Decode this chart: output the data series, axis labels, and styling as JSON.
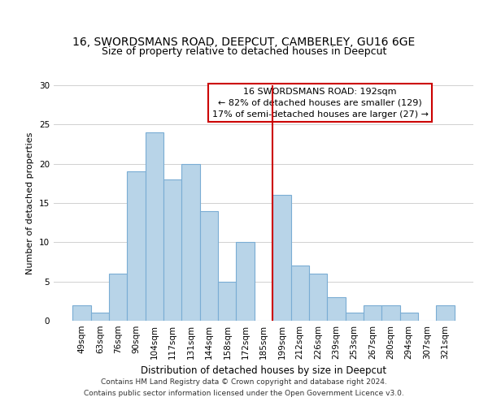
{
  "title": "16, SWORDSMANS ROAD, DEEPCUT, CAMBERLEY, GU16 6GE",
  "subtitle": "Size of property relative to detached houses in Deepcut",
  "xlabel": "Distribution of detached houses by size in Deepcut",
  "ylabel": "Number of detached properties",
  "categories": [
    "49sqm",
    "63sqm",
    "76sqm",
    "90sqm",
    "104sqm",
    "117sqm",
    "131sqm",
    "144sqm",
    "158sqm",
    "172sqm",
    "185sqm",
    "199sqm",
    "212sqm",
    "226sqm",
    "239sqm",
    "253sqm",
    "267sqm",
    "280sqm",
    "294sqm",
    "307sqm",
    "321sqm"
  ],
  "values": [
    2,
    1,
    6,
    19,
    24,
    18,
    20,
    14,
    5,
    10,
    0,
    16,
    7,
    6,
    3,
    1,
    2,
    2,
    1,
    0,
    2
  ],
  "bar_color": "#b8d4e8",
  "bar_edge_color": "#7aadd4",
  "background_color": "#ffffff",
  "grid_color": "#d0d0d0",
  "vline_x": 11,
  "vline_color": "#cc0000",
  "annotation_text": "16 SWORDSMANS ROAD: 192sqm\n← 82% of detached houses are smaller (129)\n17% of semi-detached houses are larger (27) →",
  "annotation_box_color": "#ffffff",
  "annotation_box_edge": "#cc0000",
  "ylim": [
    0,
    30
  ],
  "yticks": [
    0,
    5,
    10,
    15,
    20,
    25,
    30
  ],
  "footer_text": "Contains HM Land Registry data © Crown copyright and database right 2024.\nContains public sector information licensed under the Open Government Licence v3.0.",
  "title_fontsize": 10,
  "subtitle_fontsize": 9,
  "xlabel_fontsize": 8.5,
  "ylabel_fontsize": 8,
  "tick_fontsize": 7.5,
  "annotation_fontsize": 8,
  "footer_fontsize": 6.5
}
